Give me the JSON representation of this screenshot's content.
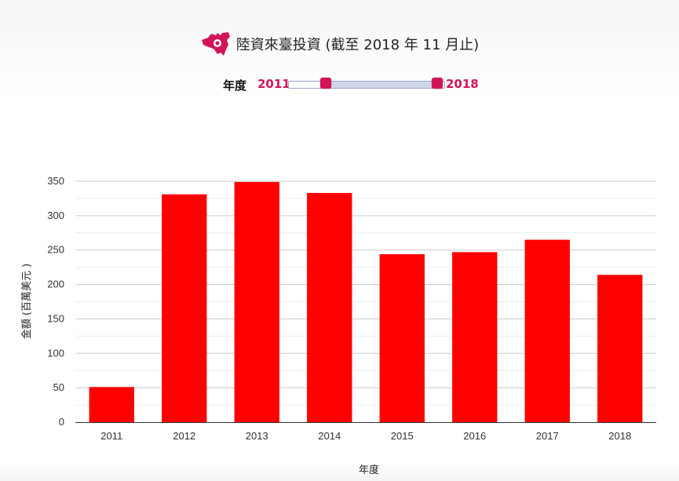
{
  "header": {
    "title": "陸資來臺投資 (截至 2018 年 11 月止)",
    "logo_icon": "taiwan-map-logo-icon",
    "logo_color": "#d4145a"
  },
  "range_filter": {
    "label": "年度",
    "min_label": "2011",
    "max_label": "2018",
    "accent_color": "#d4145a",
    "start_fraction": 0.25,
    "end_fraction": 1.0
  },
  "chart_data": {
    "type": "bar",
    "title": "",
    "xlabel": "年度",
    "ylabel": "金額 (百萬美元 )",
    "categories": [
      "2011",
      "2012",
      "2013",
      "2014",
      "2015",
      "2016",
      "2017",
      "2018"
    ],
    "values": [
      51,
      331,
      349,
      333,
      244,
      247,
      265,
      214
    ],
    "ylim": [
      0,
      350
    ],
    "yticks": [
      0,
      50,
      100,
      150,
      200,
      250,
      300,
      350
    ],
    "grid": true,
    "bar_color": "#ff0000"
  }
}
